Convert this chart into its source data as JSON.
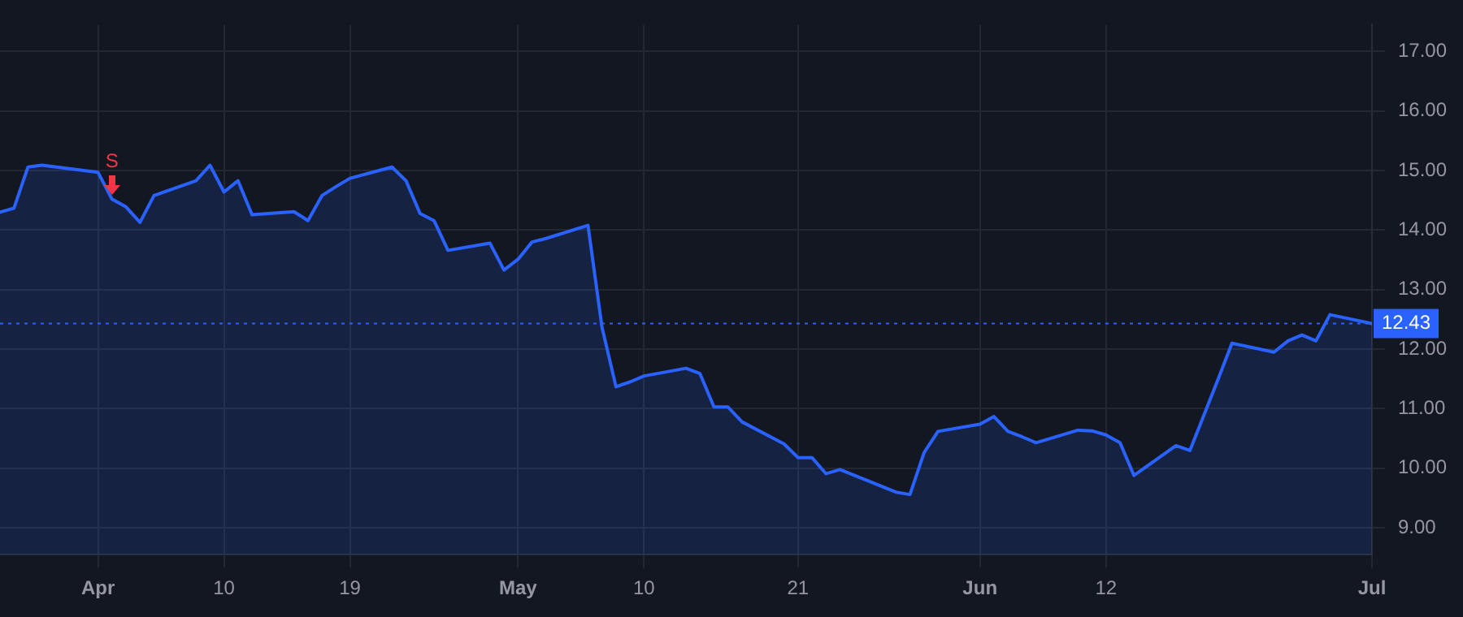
{
  "chart_data": {
    "type": "area",
    "x": [
      "--03-25",
      "--03-26",
      "--03-27",
      "--03-28",
      "--04-01",
      "--04-02",
      "--04-03",
      "--04-04",
      "--04-05",
      "--04-08",
      "--04-09",
      "--04-10",
      "--04-11",
      "--04-12",
      "--04-15",
      "--04-16",
      "--04-17",
      "--04-18",
      "--04-19",
      "--04-22",
      "--04-23",
      "--04-24",
      "--04-25",
      "--04-26",
      "--04-29",
      "--04-30",
      "--05-01",
      "--05-02",
      "--05-03",
      "--05-06",
      "--05-07",
      "--05-08",
      "--05-09",
      "--05-10",
      "--05-13",
      "--05-14",
      "--05-15",
      "--05-16",
      "--05-17",
      "--05-20",
      "--05-21",
      "--05-22",
      "--05-23",
      "--05-24",
      "--05-28",
      "--05-29",
      "--05-30",
      "--05-31",
      "--06-03",
      "--06-04",
      "--06-05",
      "--06-06",
      "--06-07",
      "--06-10",
      "--06-11",
      "--06-12",
      "--06-13",
      "--06-14",
      "--06-17",
      "--06-18",
      "--06-20",
      "--06-21",
      "--06-24",
      "--06-25",
      "--06-26",
      "--06-27",
      "--06-28",
      "--07-01"
    ],
    "series": [
      {
        "color": "#2962ff",
        "values": [
          14.3,
          14.37,
          15.06,
          15.09,
          14.97,
          14.52,
          14.39,
          14.13,
          14.58,
          14.83,
          15.09,
          14.64,
          14.83,
          14.26,
          14.31,
          14.16,
          14.58,
          14.73,
          14.87,
          15.06,
          14.83,
          14.28,
          14.16,
          13.66,
          13.78,
          13.33,
          13.51,
          13.8,
          13.86,
          14.08,
          12.37,
          11.37,
          11.45,
          11.55,
          11.68,
          11.59,
          11.03,
          11.03,
          10.78,
          10.41,
          10.18,
          10.18,
          9.91,
          9.98,
          9.6,
          9.56,
          10.26,
          10.62,
          10.74,
          10.87,
          10.62,
          10.53,
          10.43,
          10.64,
          10.63,
          10.56,
          10.43,
          9.88,
          10.38,
          10.3,
          11.49,
          12.1,
          11.95,
          12.14,
          12.24,
          12.14,
          12.58,
          12.43
        ]
      }
    ],
    "xlim": [
      "--03-25",
      "--07-01"
    ],
    "xticks": [
      {
        "value": "--04-01",
        "label": "Apr"
      },
      {
        "value": "--04-10",
        "label": "10"
      },
      {
        "value": "--04-19",
        "label": "19"
      },
      {
        "value": "--05-01",
        "label": "May"
      },
      {
        "value": "--05-10",
        "label": "10"
      },
      {
        "value": "--05-21",
        "label": "21"
      },
      {
        "value": "--06-03",
        "label": "Jun"
      },
      {
        "value": "--06-12",
        "label": "12"
      },
      {
        "value": "--07-01",
        "label": "Jul"
      }
    ],
    "ylim": [
      8.55,
      17.45
    ],
    "yticks": [
      {
        "value": 9,
        "label": "9.00"
      },
      {
        "value": 10,
        "label": "10.00"
      },
      {
        "value": 11,
        "label": "11.00"
      },
      {
        "value": 12,
        "label": "12.00"
      },
      {
        "value": 13,
        "label": "13.00"
      },
      {
        "value": 14,
        "label": "14.00"
      },
      {
        "value": 15,
        "label": "15.00"
      },
      {
        "value": 16,
        "label": "16.00"
      },
      {
        "value": 17,
        "label": "17.00"
      }
    ],
    "ref_lines": [
      {
        "axis": "y",
        "value": 12.43,
        "label": "12.43",
        "color": "#2962ff",
        "line_style": "dotted"
      }
    ],
    "annotations": [
      {
        "text": "S",
        "x": "--04-02",
        "y": 14.52
      }
    ],
    "grid": true,
    "legend": false,
    "marker": "none",
    "line_style": "solid"
  }
}
